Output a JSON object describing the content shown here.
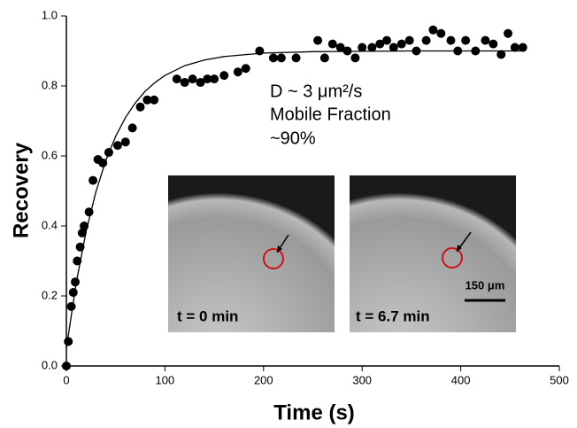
{
  "chart_data": {
    "type": "scatter",
    "x_label": "Time (s)",
    "y_label": "Recovery",
    "xlim": [
      0,
      500
    ],
    "xticks": [
      0,
      100,
      200,
      300,
      400,
      500
    ],
    "ylim": [
      0,
      1.0
    ],
    "yticks": [
      {
        "value": 0,
        "label": "0.0"
      },
      {
        "value": 0.2,
        "label": "0.2"
      },
      {
        "value": 0.4,
        "label": "0.4"
      },
      {
        "value": 0.6,
        "label": "0.6"
      },
      {
        "value": 0.8,
        "label": "0.8"
      },
      {
        "value": 1.0,
        "label": "1.0"
      }
    ],
    "color": "#000000",
    "x": [
      0,
      2,
      5,
      7,
      9,
      11,
      14,
      16,
      18,
      23,
      27,
      32,
      37,
      43,
      52,
      60,
      67,
      75,
      82,
      89,
      112,
      120,
      128,
      136,
      143,
      150,
      160,
      174,
      182,
      196,
      210,
      218,
      233,
      255,
      262,
      270,
      278,
      285,
      293,
      300,
      310,
      318,
      325,
      332,
      340,
      348,
      355,
      365,
      372,
      380,
      390,
      397,
      405,
      415,
      425,
      433,
      441,
      448,
      455,
      463
    ],
    "values": [
      0.0,
      0.07,
      0.17,
      0.21,
      0.24,
      0.3,
      0.34,
      0.38,
      0.4,
      0.44,
      0.53,
      0.59,
      0.58,
      0.61,
      0.63,
      0.64,
      0.68,
      0.74,
      0.76,
      0.76,
      0.82,
      0.81,
      0.82,
      0.81,
      0.82,
      0.82,
      0.83,
      0.84,
      0.85,
      0.9,
      0.88,
      0.88,
      0.88,
      0.93,
      0.88,
      0.92,
      0.91,
      0.9,
      0.88,
      0.91,
      0.91,
      0.92,
      0.93,
      0.91,
      0.92,
      0.93,
      0.9,
      0.93,
      0.96,
      0.95,
      0.93,
      0.9,
      0.93,
      0.9,
      0.93,
      0.92,
      0.89,
      0.95,
      0.91,
      0.91
    ],
    "fit_x": [
      0,
      10,
      20,
      30,
      40,
      50,
      60,
      70,
      80,
      90,
      100,
      120,
      140,
      160,
      200,
      250,
      300,
      350,
      400,
      465
    ],
    "fit_values": [
      0.05,
      0.238,
      0.384,
      0.498,
      0.587,
      0.656,
      0.71,
      0.752,
      0.785,
      0.81,
      0.83,
      0.858,
      0.874,
      0.884,
      0.894,
      0.898,
      0.899,
      0.9,
      0.9,
      0.9
    ],
    "annotations": [
      "D ~ 3 μm²/s",
      "Mobile Fraction",
      "~90%"
    ],
    "inset_labels": [
      "t = 0 min",
      "t = 6.7 min"
    ],
    "scale_bar_label": "150 μm"
  }
}
